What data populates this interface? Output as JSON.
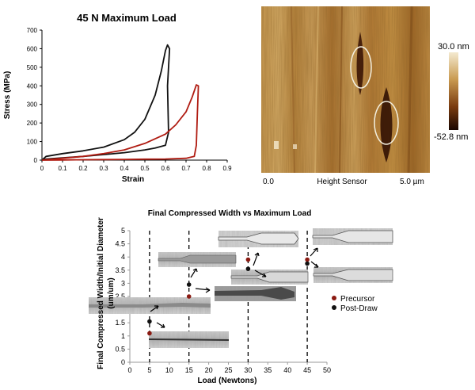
{
  "top_chart": {
    "title": "45 N Maximum Load",
    "xlabel": "Strain",
    "ylabel": "Stress (MPa)",
    "xticks": [
      "0",
      "0.1",
      "0.2",
      "0.3",
      "0.4",
      "0.5",
      "0.6",
      "0.7",
      "0.8",
      "0.9"
    ],
    "yticks": [
      "0",
      "100",
      "200",
      "300",
      "400",
      "500",
      "600",
      "700"
    ],
    "colors": {
      "black_curve": "#111111",
      "red_curve": "#b01c12"
    }
  },
  "afm": {
    "scale_max": "30.0 nm",
    "scale_min": "-52.8 nm",
    "axis_start": "0.0",
    "axis_title": "Height Sensor",
    "axis_end": "5.0 µm",
    "colors": {
      "light": "#f0e4b4",
      "mid": "#b07a34",
      "dark": "#2a0c00"
    }
  },
  "bottom_chart": {
    "title": "Final Compressed Width vs Maximum Load",
    "xlabel": "Load (Newtons)",
    "ylabel_line1": "Final Compressed Width/Initial Diameter",
    "ylabel_line2": "(um/um)",
    "xticks": [
      "0",
      "5",
      "10",
      "15",
      "20",
      "25",
      "30",
      "35",
      "40",
      "45",
      "50"
    ],
    "yticks": [
      "0",
      "0.5",
      "1",
      "1.5",
      "2",
      "2.5",
      "3",
      "3.5",
      "4",
      "4.5",
      "5"
    ],
    "legend": [
      "Precursor",
      "Post-Draw"
    ],
    "colors": {
      "precursor": "#8b1a12",
      "post_draw": "#111111"
    }
  },
  "chart_data": [
    {
      "type": "line",
      "title": "45 N Maximum Load",
      "xlabel": "Strain",
      "ylabel": "Stress (MPa)",
      "xlim": [
        0,
        0.9
      ],
      "ylim": [
        0,
        700
      ],
      "series": [
        {
          "color": "#111111",
          "x": [
            0,
            0.02,
            0.1,
            0.2,
            0.3,
            0.4,
            0.45,
            0.5,
            0.55,
            0.58,
            0.6,
            0.61,
            0.62,
            0.61,
            0.615,
            0.6,
            0.55,
            0.5,
            0.4,
            0.3,
            0.2,
            0.1,
            0.02,
            0
          ],
          "y": [
            0,
            20,
            35,
            50,
            70,
            110,
            150,
            220,
            350,
            480,
            590,
            620,
            600,
            400,
            150,
            80,
            65,
            55,
            40,
            30,
            20,
            12,
            6,
            0
          ]
        },
        {
          "color": "#b01c12",
          "x": [
            0,
            0.1,
            0.2,
            0.3,
            0.4,
            0.5,
            0.6,
            0.65,
            0.7,
            0.73,
            0.75,
            0.76,
            0.755,
            0.75,
            0.74,
            0.7,
            0.6,
            0.5,
            0.4,
            0.3,
            0.2,
            0.1,
            0
          ],
          "y": [
            0,
            10,
            20,
            35,
            55,
            90,
            140,
            190,
            260,
            340,
            405,
            400,
            250,
            80,
            20,
            10,
            6,
            5,
            4,
            3,
            2,
            1,
            0
          ]
        }
      ]
    },
    {
      "type": "scatter",
      "title": "Final Compressed Width vs Maximum Load",
      "xlabel": "Load (Newtons)",
      "ylabel": "Final Compressed Width/Initial Diameter (um/um)",
      "xlim": [
        0,
        50
      ],
      "ylim": [
        0,
        5
      ],
      "series": [
        {
          "name": "Precursor",
          "color": "#8b1a12",
          "x": [
            5,
            15,
            30,
            45
          ],
          "y": [
            1.1,
            2.5,
            3.9,
            3.9
          ]
        },
        {
          "name": "Post-Draw",
          "color": "#111111",
          "x": [
            5,
            15,
            30,
            45
          ],
          "y": [
            1.55,
            2.95,
            3.55,
            3.75
          ]
        }
      ],
      "vertical_lines_x": [
        5,
        15,
        30,
        45
      ]
    }
  ]
}
